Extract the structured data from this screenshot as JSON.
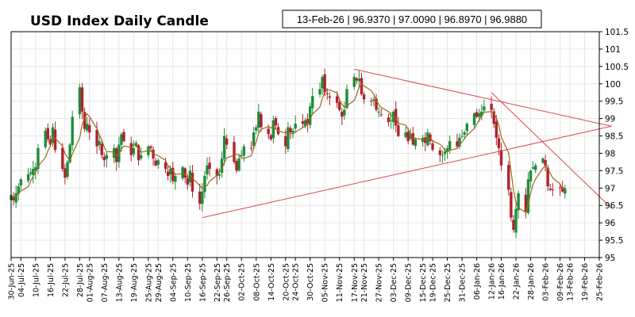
{
  "chart_data": {
    "type": "candlestick",
    "title": "USD Index Daily Candle",
    "ohlc_label": "13-Feb-26 | 96.9370 | 97.0090 | 96.8970 | 96.9880",
    "ylim": [
      95,
      101.5
    ],
    "yticks": [
      "95",
      "95.5",
      "96",
      "96.5",
      "97",
      "97.5",
      "98",
      "98.5",
      "99",
      "99.5",
      "100",
      "100.5",
      "101",
      "101.5"
    ],
    "xlim": [
      "2025-06-30",
      "2026-02-25"
    ],
    "xticks": [
      "30-Jun-25",
      "04-Jul-25",
      "10-Jul-25",
      "16-Jul-25",
      "22-Jul-25",
      "28-Jul-25",
      "01-Aug-25",
      "07-Aug-25",
      "13-Aug-25",
      "19-Aug-25",
      "25-Aug-25",
      "29-Aug-25",
      "04-Sep-25",
      "10-Sep-25",
      "16-Sep-25",
      "22-Sep-25",
      "26-Sep-25",
      "02-Oct-25",
      "08-Oct-25",
      "14-Oct-25",
      "20-Oct-25",
      "24-Oct-25",
      "30-Oct-25",
      "05-Nov-25",
      "11-Nov-25",
      "17-Nov-25",
      "21-Nov-25",
      "27-Nov-25",
      "03-Dec-25",
      "09-Dec-25",
      "15-Dec-25",
      "19-Dec-25",
      "25-Dec-25",
      "31-Dec-25",
      "06-Jan-26",
      "12-Jan-26",
      "16-Jan-26",
      "22-Jan-26",
      "28-Jan-26",
      "03-Feb-26",
      "09-Feb-26",
      "13-Feb-26",
      "19-Feb-26",
      "25-Feb-26"
    ],
    "grid": true,
    "colors": {
      "up": "#1e8c3a",
      "down": "#b0222c",
      "ma": "#9a6a1a",
      "trendline": "#d9474f"
    },
    "closes": [
      96.8,
      96.65,
      96.85,
      97.05,
      97.25,
      97.4,
      97.45,
      97.55,
      97.6,
      98.15,
      98.65,
      98.4,
      98.25,
      98.75,
      98.1,
      97.55,
      97.3,
      97.75,
      98.25,
      99.05,
      99.9,
      99.2,
      98.7,
      98.85,
      98.6,
      98.2,
      98.35,
      97.95,
      97.8,
      97.95,
      98.15,
      97.75,
      98.25,
      98.55,
      98.35,
      97.95,
      98.15,
      98.3,
      97.8,
      97.95,
      98.2,
      98.15,
      97.85,
      97.65,
      97.8,
      97.55,
      97.35,
      97.55,
      97.2,
      97.35,
      97.6,
      97.3,
      97.1,
      97.5,
      96.9,
      96.55,
      96.9,
      97.35,
      97.65,
      97.55,
      97.35,
      97.4,
      97.85,
      98.5,
      98.25,
      97.75,
      97.5,
      97.85,
      97.95,
      98.2,
      98.15,
      98.6,
      98.75,
      99.2,
      98.75,
      98.55,
      98.4,
      98.95,
      98.8,
      98.55,
      98.2,
      98.75,
      98.6,
      98.65,
      98.85,
      98.85,
      98.95,
      98.85,
      99.35,
      99.65,
      99.85,
      100.2,
      99.75,
      99.7,
      99.6,
      99.45,
      99.25,
      99.05,
      99.25,
      99.85,
      100.2,
      100.1,
      100.15,
      99.7,
      99.55,
      99.5,
      99.55,
      99.25,
      99.2,
      99.1,
      98.9,
      98.95,
      99.2,
      98.8,
      98.5,
      98.6,
      98.35,
      98.55,
      98.25,
      98.4,
      98.45,
      98.3,
      98.6,
      98.35,
      98.1,
      97.95,
      97.95,
      98.05,
      98.15,
      98.35,
      98.2,
      98.45,
      98.5,
      98.6,
      98.85,
      99.15,
      99.05,
      99.15,
      99.2,
      99.35,
      99.25,
      98.85,
      98.45,
      98.15,
      97.65,
      96.95,
      96.15,
      95.8,
      96.4,
      96.85,
      96.3,
      97.25,
      97.5,
      97.6,
      97.65,
      97.85,
      97.65,
      97.05,
      96.95,
      96.95,
      97.0,
      96.9,
      96.99
    ]
  }
}
